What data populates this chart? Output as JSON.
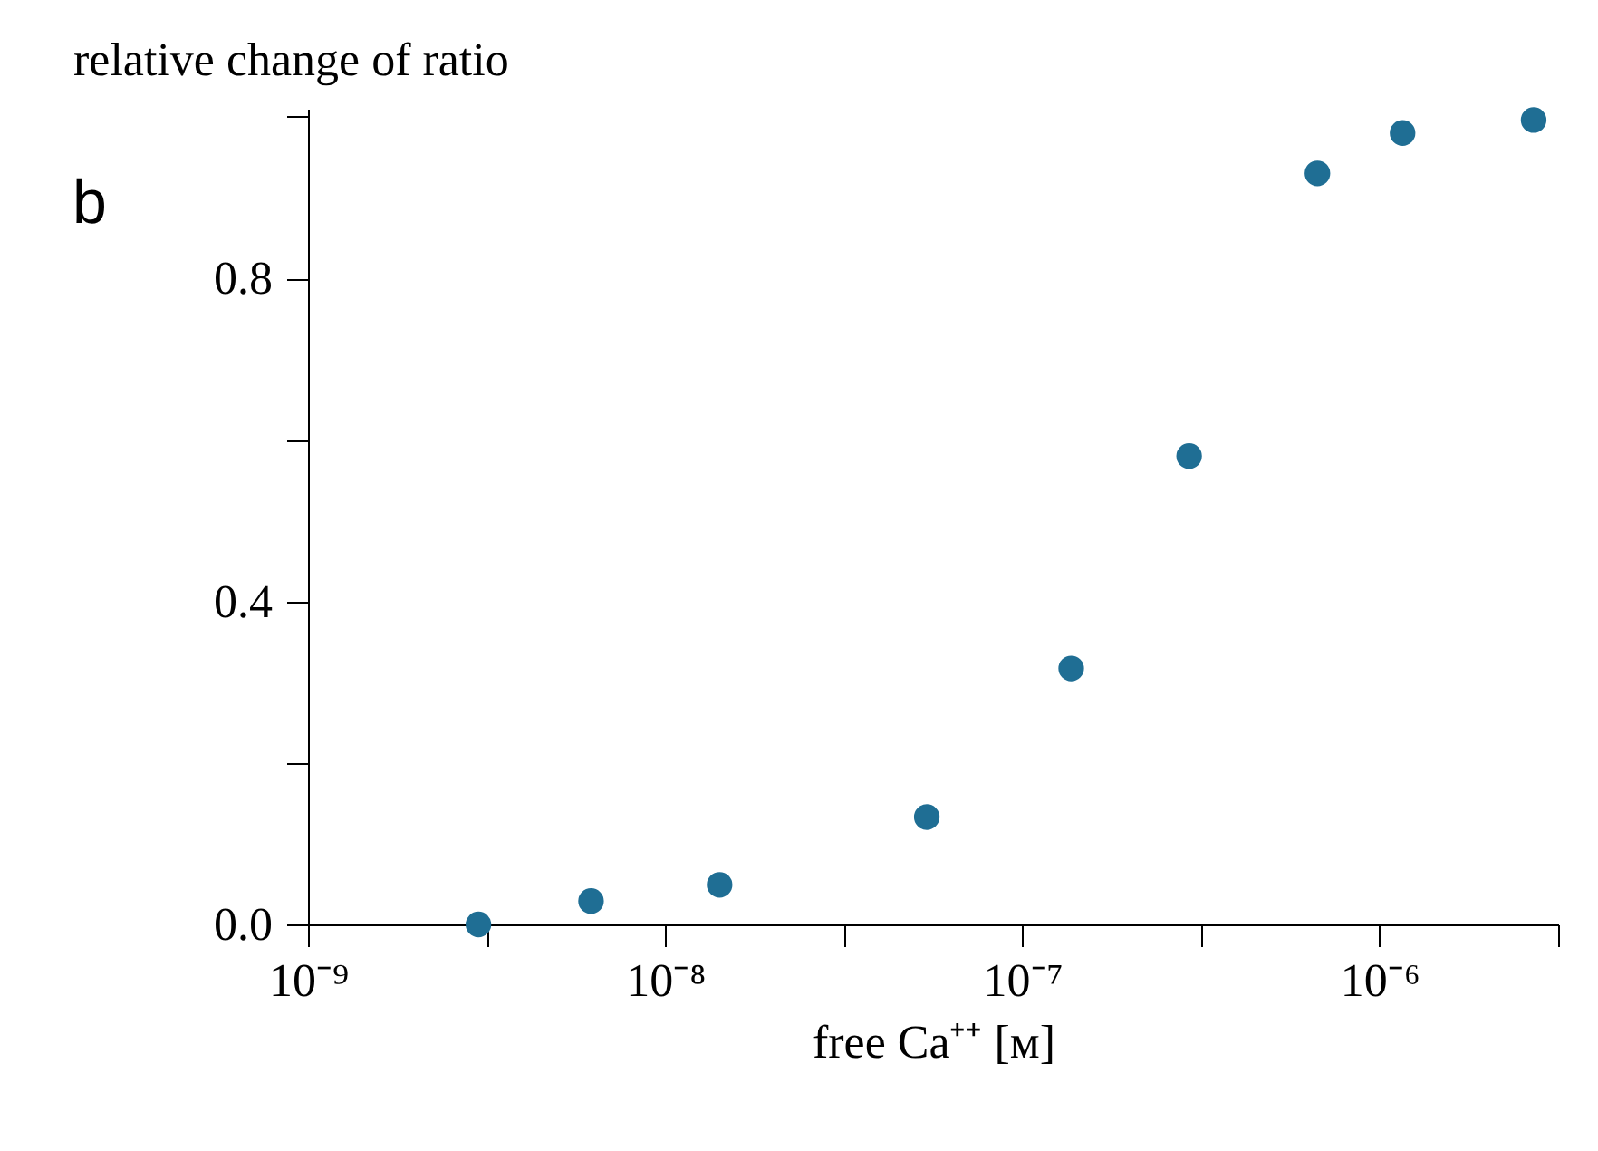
{
  "chart_data": {
    "type": "scatter",
    "ylabel": "relative change of ratio",
    "xlabel": "free Ca⁺⁺  [м]",
    "annotations": [
      "b"
    ],
    "x": [
      3e-09,
      6.2e-09,
      1.42e-08,
      5.4e-08,
      1.37e-07,
      2.93e-07,
      6.7e-07,
      1.16e-06,
      2.7e-06
    ],
    "series": [
      {
        "color": "#1f6e94",
        "values": [
          0.0,
          0.029,
          0.049,
          0.133,
          0.317,
          0.58,
          0.93,
          0.98,
          0.996
        ]
      }
    ],
    "log": "x",
    "marker": "circle",
    "xlim": [
      1e-09,
      3.1623e-06
    ],
    "xticks": [
      {
        "value": 1e-09,
        "label": "10⁻⁹"
      },
      {
        "value": 3.1623e-09,
        "label": null
      },
      {
        "value": 1e-08,
        "label": "10⁻⁸"
      },
      {
        "value": 3.1623e-08,
        "label": null
      },
      {
        "value": 1e-07,
        "label": "10⁻⁷"
      },
      {
        "value": 3.1623e-07,
        "label": null
      },
      {
        "value": 1e-06,
        "label": "10⁻⁶"
      },
      {
        "value": 3.1623e-06,
        "label": null
      }
    ],
    "ylim": [
      0,
      1.01
    ],
    "yticks": [
      {
        "value": 0,
        "label": "0.0"
      },
      {
        "value": 0.2,
        "label": null
      },
      0.4,
      {
        "value": 0.6,
        "label": null
      },
      0.8,
      {
        "value": 1.0,
        "label": null
      }
    ]
  }
}
